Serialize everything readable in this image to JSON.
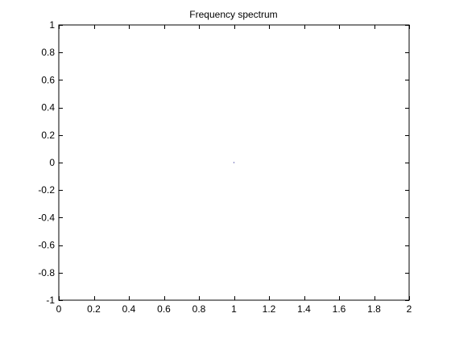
{
  "chart_data": {
    "type": "scatter",
    "title": "Frequency spectrum",
    "xlabel": "",
    "ylabel": "",
    "xlim": [
      0,
      2
    ],
    "ylim": [
      -1,
      1
    ],
    "x_ticks": [
      0,
      0.2,
      0.4,
      0.6,
      0.8,
      1,
      1.2,
      1.4,
      1.6,
      1.8,
      2
    ],
    "x_tick_labels": [
      "0",
      "0.2",
      "0.4",
      "0.6",
      "0.8",
      "1",
      "1.2",
      "1.4",
      "1.6",
      "1.8",
      "2"
    ],
    "y_ticks": [
      -1,
      -0.8,
      -0.6,
      -0.4,
      -0.2,
      0,
      0.2,
      0.4,
      0.6,
      0.8,
      1
    ],
    "y_tick_labels": [
      "-1",
      "-0.8",
      "-0.6",
      "-0.4",
      "-0.2",
      "0",
      "0.2",
      "0.4",
      "0.6",
      "0.8",
      "1"
    ],
    "grid": false,
    "series": [
      {
        "x": [
          1
        ],
        "y": [
          0
        ],
        "color": "#000080"
      }
    ],
    "colors": {
      "background": "#ffffff",
      "axes": "#000000"
    }
  }
}
